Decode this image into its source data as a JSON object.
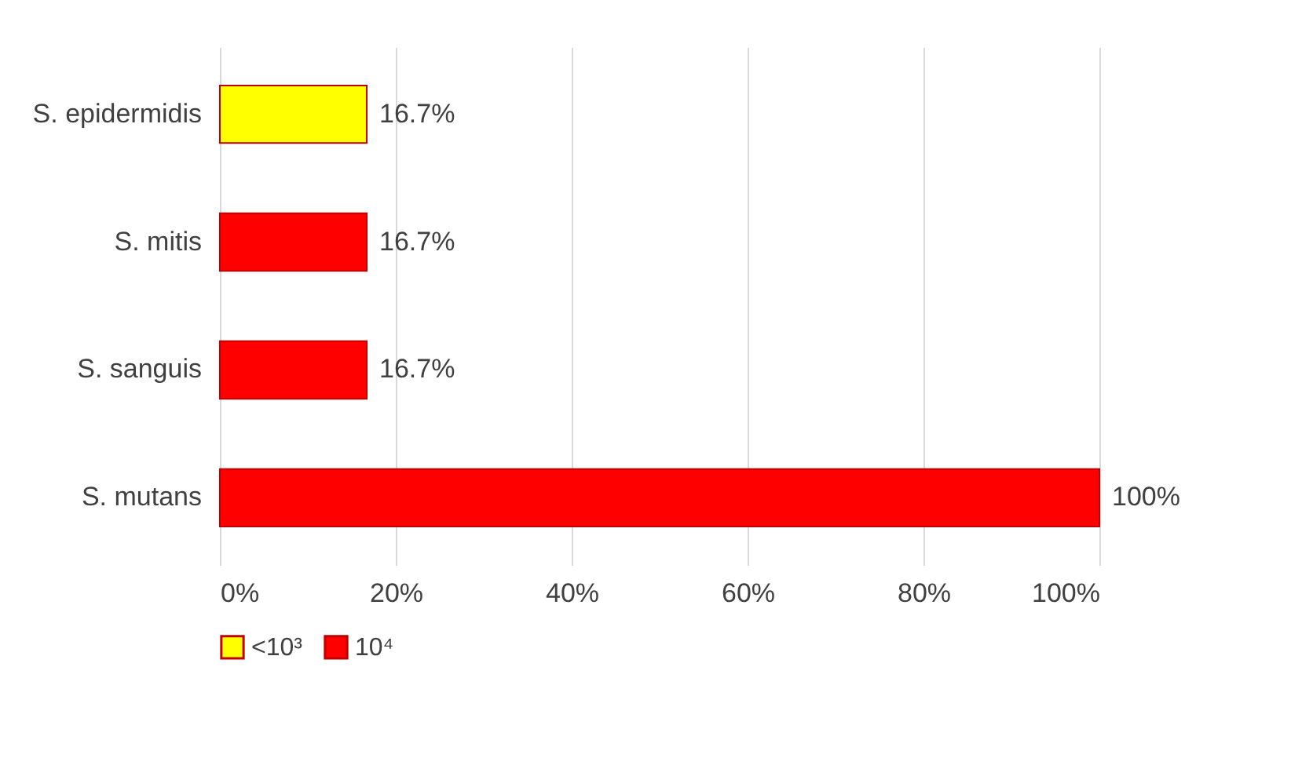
{
  "chart_data": {
    "type": "bar",
    "orientation": "horizontal",
    "categories": [
      "S. epidermidis",
      "S. mitis",
      "S. sanguis",
      "S. mutans"
    ],
    "series": [
      {
        "name": "<10³",
        "color": "#ffff00",
        "values": [
          16.7,
          null,
          null,
          null
        ],
        "value_labels": [
          "16.7%",
          null,
          null,
          null
        ]
      },
      {
        "name": "10⁴",
        "color": "#ff0000",
        "values": [
          null,
          16.7,
          16.7,
          100
        ],
        "value_labels": [
          null,
          "16.7%",
          "16.7%",
          "100%"
        ]
      }
    ],
    "xlim": [
      0,
      100
    ],
    "xticks": [
      {
        "value": 0,
        "label": "0%"
      },
      {
        "value": 20,
        "label": "20%"
      },
      {
        "value": 40,
        "label": "40%"
      },
      {
        "value": 60,
        "label": "60%"
      },
      {
        "value": 80,
        "label": "80%"
      },
      {
        "value": 100,
        "label": "100%"
      }
    ],
    "grid": "x",
    "legend": "bottom"
  }
}
